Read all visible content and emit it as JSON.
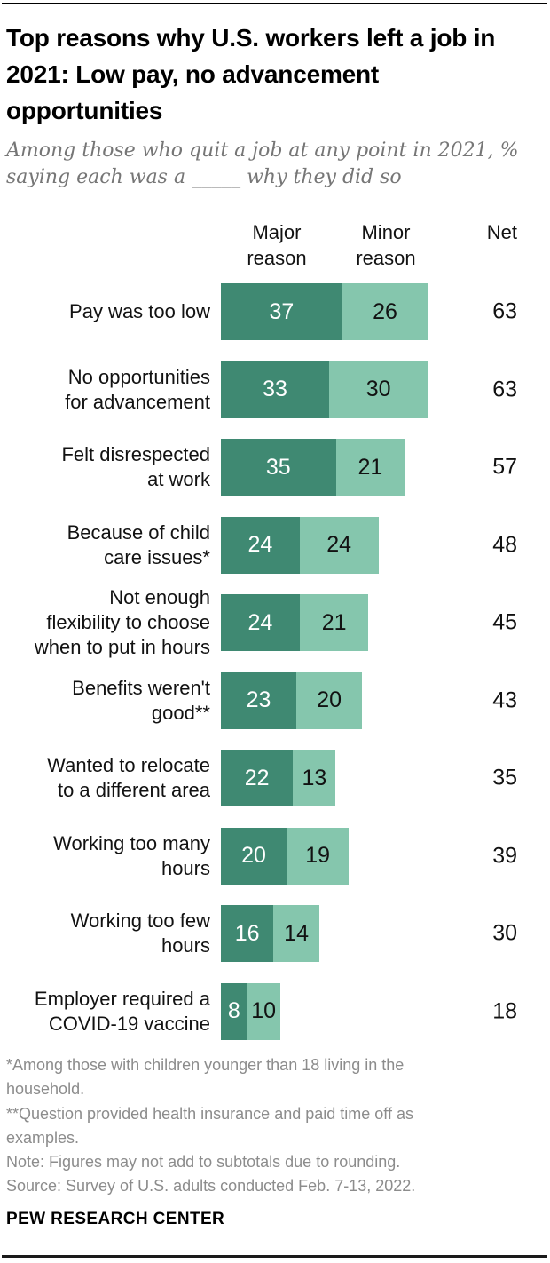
{
  "header": {
    "title": "Top reasons why U.S. workers left a job in 2021: Low pay, no advancement opportunities",
    "subtitle": "Among those who quit a job at any point in 2021, %\nsaying each was a _____ why they did so"
  },
  "chart": {
    "columns": {
      "major": "Major reason",
      "minor": "Minor reason",
      "net": "Net"
    },
    "rows": [
      {
        "label": "Pay was too low",
        "major": 37,
        "minor": 26,
        "net": 63
      },
      {
        "label": "No opportunities\nfor advancement",
        "major": 33,
        "minor": 30,
        "net": 63
      },
      {
        "label": "Felt disrespected\nat work",
        "major": 35,
        "minor": 21,
        "net": 57
      },
      {
        "label": "Because of child\ncare issues*",
        "major": 24,
        "minor": 24,
        "net": 48
      },
      {
        "label": "Not enough\nflexibility to choose\nwhen to put in hours",
        "major": 24,
        "minor": 21,
        "net": 45
      },
      {
        "label": "Benefits weren't\ngood**",
        "major": 23,
        "minor": 20,
        "net": 43
      },
      {
        "label": "Wanted to relocate\nto a different area",
        "major": 22,
        "minor": 13,
        "net": 35
      },
      {
        "label": "Working too many\nhours",
        "major": 20,
        "minor": 19,
        "net": 39
      },
      {
        "label": "Working too few\nhours",
        "major": 16,
        "minor": 14,
        "net": 30
      },
      {
        "label": "Employer required a\nCOVID-19 vaccine",
        "major": 8,
        "minor": 10,
        "net": 18
      }
    ]
  },
  "colors": {
    "major_bar": "#3f8972",
    "minor_bar": "#85c6ad",
    "major_value_text": "#ffffff",
    "minor_value_text": "#121212"
  },
  "footnotes": [
    "*Among those with children younger than 18 living in the\nhousehold.",
    "**Question provided health insurance and paid time off as\nexamples.",
    "Note: Figures may not add to subtotals due to rounding.",
    "Source: Survey of U.S. adults conducted Feb. 7-13, 2022."
  ],
  "footer": {
    "brand": "PEW RESEARCH CENTER"
  },
  "chart_data": {
    "type": "bar",
    "orientation": "horizontal",
    "stacked": true,
    "title": "Top reasons why U.S. workers left a job in 2021: Low pay, no advancement opportunities",
    "subtitle": "Among those who quit a job at any point in 2021, % saying each was a ____ why they did so",
    "categories": [
      "Pay was too low",
      "No opportunities for advancement",
      "Felt disrespected at work",
      "Because of child care issues*",
      "Not enough flexibility to choose when to put in hours",
      "Benefits weren't good**",
      "Wanted to relocate to a different area",
      "Working too many hours",
      "Working too few hours",
      "Employer required a COVID-19 vaccine"
    ],
    "series": [
      {
        "name": "Major reason",
        "values": [
          37,
          33,
          35,
          24,
          24,
          23,
          22,
          20,
          16,
          8
        ]
      },
      {
        "name": "Minor reason",
        "values": [
          26,
          30,
          21,
          24,
          21,
          20,
          13,
          19,
          14,
          10
        ]
      }
    ],
    "net_values": [
      63,
      63,
      57,
      48,
      45,
      43,
      35,
      39,
      30,
      18
    ],
    "xlim": [
      0,
      63
    ],
    "grid": false,
    "value_labels_shown": true,
    "legend_position": "column-headers-above-bars",
    "source_brand": "PEW RESEARCH CENTER"
  }
}
